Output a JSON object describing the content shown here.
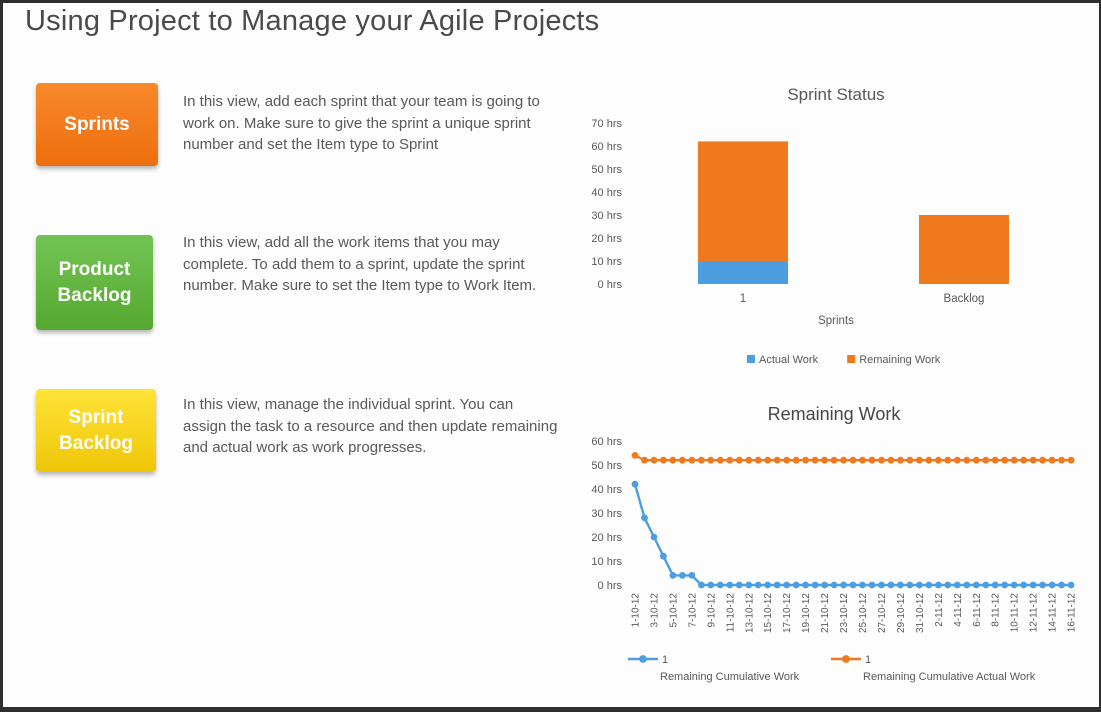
{
  "page": {
    "title": "Using Project to Manage your Agile Projects"
  },
  "sections": [
    {
      "box_label": "Sprints",
      "color_top": "#F8892D",
      "color_bottom": "#EE6E0D",
      "text": "In this view, add each sprint that your team is going to work on. Make sure to give the sprint a unique sprint number and set the Item type to Sprint"
    },
    {
      "box_label": "Product Backlog",
      "color_top": "#74C455",
      "color_bottom": "#55A82F",
      "text": "In this view, add all the work items that you may complete. To add them to a sprint, update the sprint number. Make sure to set the Item type to Work Item."
    },
    {
      "box_label": "Sprint Backlog",
      "color_top": "#FFE338",
      "color_bottom": "#EEC607",
      "text": "In this view, manage the individual sprint. You can assign the task to a resource and then update remaining and actual work as work progresses."
    }
  ],
  "chart_data": [
    {
      "type": "bar",
      "stacked": true,
      "title": "Sprint Status",
      "xlabel": "Sprints",
      "categories": [
        "1",
        "Backlog"
      ],
      "series": [
        {
          "name": "Actual Work",
          "color": "#4C9EE0",
          "values": [
            10,
            0
          ]
        },
        {
          "name": "Remaining Work",
          "color": "#F0791E",
          "values": [
            52,
            30
          ]
        }
      ],
      "ylim": [
        0,
        70
      ],
      "ytick_step": 10,
      "ytick_suffix": " hrs",
      "grid": false,
      "legend_position": "bottom"
    },
    {
      "type": "line",
      "title": "Remaining Work",
      "x": [
        "1-10-12",
        "2-10-12",
        "3-10-12",
        "4-10-12",
        "5-10-12",
        "6-10-12",
        "7-10-12",
        "8-10-12",
        "9-10-12",
        "10-10-12",
        "11-10-12",
        "12-10-12",
        "13-10-12",
        "14-10-12",
        "15-10-12",
        "16-10-12",
        "17-10-12",
        "18-10-12",
        "19-10-12",
        "20-10-12",
        "21-10-12",
        "22-10-12",
        "23-10-12",
        "24-10-12",
        "25-10-12",
        "26-10-12",
        "27-10-12",
        "28-10-12",
        "29-10-12",
        "30-10-12",
        "31-10-12",
        "1-11-12",
        "2-11-12",
        "3-11-12",
        "4-11-12",
        "5-11-12",
        "6-11-12",
        "7-11-12",
        "8-11-12",
        "9-11-12",
        "10-11-12",
        "11-11-12",
        "12-11-12",
        "13-11-12",
        "14-11-12",
        "15-11-12",
        "16-11-12"
      ],
      "xtick_every": 2,
      "series": [
        {
          "name": "1 Remaining Cumulative Work",
          "legend_top": "1",
          "legend_name": "Remaining Cumulative Work",
          "color": "#4C9EE0",
          "values": [
            42,
            28,
            20,
            12,
            4,
            4,
            4,
            0,
            0,
            0,
            0,
            0,
            0,
            0,
            0,
            0,
            0,
            0,
            0,
            0,
            0,
            0,
            0,
            0,
            0,
            0,
            0,
            0,
            0,
            0,
            0,
            0,
            0,
            0,
            0,
            0,
            0,
            0,
            0,
            0,
            0,
            0,
            0,
            0,
            0,
            0,
            0
          ]
        },
        {
          "name": "1 Remaining Cumulative Actual Work",
          "legend_top": "1",
          "legend_name": "Remaining Cumulative Actual Work",
          "color": "#F0791E",
          "values": [
            54,
            52,
            52,
            52,
            52,
            52,
            52,
            52,
            52,
            52,
            52,
            52,
            52,
            52,
            52,
            52,
            52,
            52,
            52,
            52,
            52,
            52,
            52,
            52,
            52,
            52,
            52,
            52,
            52,
            52,
            52,
            52,
            52,
            52,
            52,
            52,
            52,
            52,
            52,
            52,
            52,
            52,
            52,
            52,
            52,
            52,
            52
          ]
        }
      ],
      "ylim": [
        0,
        60
      ],
      "ytick_step": 10,
      "ytick_suffix": " hrs",
      "grid": false,
      "legend_position": "bottom"
    }
  ]
}
